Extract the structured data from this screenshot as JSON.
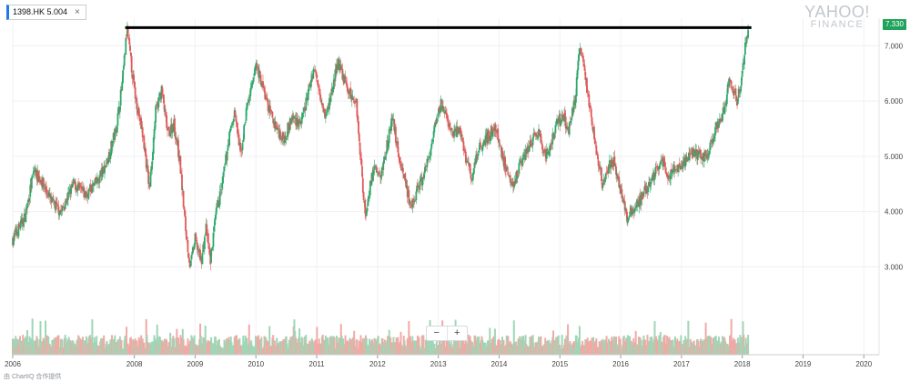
{
  "ticker": {
    "label": "1398.HK 5.004",
    "close_symbol": "×"
  },
  "brand": {
    "line1": "YAHOO!",
    "line2": "FINANCE"
  },
  "current_price": "7.330",
  "zoom": {
    "minus": "−",
    "plus": "+"
  },
  "footer": "由 ChartIQ 合作提供",
  "colors": {
    "up": "#2ea86b",
    "down": "#e05a5a",
    "vol_up": "#9fd6b6",
    "vol_down": "#f0aaa5",
    "badge": "#20a35a",
    "line": "#000000",
    "accent": "#1e7be6"
  },
  "chart_data": {
    "type": "candlestick",
    "x_tick_labels": [
      "2006",
      "2008",
      "2009",
      "2010",
      "2011",
      "2012",
      "2013",
      "2014",
      "2015",
      "2016",
      "2017",
      "2018",
      "2019",
      "2020"
    ],
    "y_tick_labels": [
      "7.000",
      "6.000",
      "5.000",
      "4.000",
      "3.000"
    ],
    "ylim": [
      2.2,
      7.5
    ],
    "xlim": [
      2006.0,
      2020.25
    ],
    "resistance_level": 7.33,
    "resistance_from": 2007.85,
    "resistance_to": 2018.15,
    "price_path": [
      [
        2006.0,
        3.5
      ],
      [
        2006.2,
        3.9
      ],
      [
        2006.35,
        4.75
      ],
      [
        2006.5,
        4.5
      ],
      [
        2006.65,
        4.15
      ],
      [
        2006.8,
        4.0
      ],
      [
        2007.0,
        4.5
      ],
      [
        2007.2,
        4.3
      ],
      [
        2007.4,
        4.55
      ],
      [
        2007.55,
        4.9
      ],
      [
        2007.7,
        5.5
      ],
      [
        2007.8,
        6.3
      ],
      [
        2007.88,
        7.3
      ],
      [
        2008.0,
        6.2
      ],
      [
        2008.15,
        5.3
      ],
      [
        2008.25,
        4.4
      ],
      [
        2008.35,
        5.8
      ],
      [
        2008.45,
        6.2
      ],
      [
        2008.55,
        5.4
      ],
      [
        2008.65,
        5.6
      ],
      [
        2008.75,
        4.9
      ],
      [
        2008.85,
        3.6
      ],
      [
        2008.92,
        3.0
      ],
      [
        2009.0,
        3.5
      ],
      [
        2009.1,
        3.1
      ],
      [
        2009.18,
        3.7
      ],
      [
        2009.25,
        3.1
      ],
      [
        2009.35,
        4.0
      ],
      [
        2009.45,
        4.5
      ],
      [
        2009.55,
        5.3
      ],
      [
        2009.65,
        5.8
      ],
      [
        2009.75,
        5.0
      ],
      [
        2009.85,
        5.9
      ],
      [
        2009.95,
        6.3
      ],
      [
        2010.0,
        6.7
      ],
      [
        2010.1,
        6.3
      ],
      [
        2010.2,
        5.9
      ],
      [
        2010.3,
        5.6
      ],
      [
        2010.45,
        5.3
      ],
      [
        2010.6,
        5.7
      ],
      [
        2010.75,
        5.6
      ],
      [
        2010.85,
        6.1
      ],
      [
        2010.95,
        6.6
      ],
      [
        2011.05,
        6.2
      ],
      [
        2011.15,
        5.7
      ],
      [
        2011.25,
        6.2
      ],
      [
        2011.35,
        6.7
      ],
      [
        2011.45,
        6.4
      ],
      [
        2011.55,
        6.1
      ],
      [
        2011.65,
        6.0
      ],
      [
        2011.72,
        5.0
      ],
      [
        2011.8,
        3.9
      ],
      [
        2011.88,
        4.5
      ],
      [
        2011.95,
        4.8
      ],
      [
        2012.05,
        4.6
      ],
      [
        2012.15,
        5.2
      ],
      [
        2012.25,
        5.7
      ],
      [
        2012.35,
        5.0
      ],
      [
        2012.45,
        4.6
      ],
      [
        2012.55,
        4.0
      ],
      [
        2012.65,
        4.4
      ],
      [
        2012.75,
        4.6
      ],
      [
        2012.85,
        5.0
      ],
      [
        2012.95,
        5.5
      ],
      [
        2013.05,
        6.0
      ],
      [
        2013.15,
        5.6
      ],
      [
        2013.25,
        5.4
      ],
      [
        2013.35,
        5.5
      ],
      [
        2013.45,
        5.0
      ],
      [
        2013.55,
        4.6
      ],
      [
        2013.65,
        5.1
      ],
      [
        2013.75,
        5.3
      ],
      [
        2013.85,
        5.4
      ],
      [
        2013.95,
        5.5
      ],
      [
        2014.05,
        5.0
      ],
      [
        2014.15,
        4.7
      ],
      [
        2014.25,
        4.5
      ],
      [
        2014.35,
        4.9
      ],
      [
        2014.45,
        5.1
      ],
      [
        2014.55,
        5.3
      ],
      [
        2014.65,
        5.4
      ],
      [
        2014.75,
        5.0
      ],
      [
        2014.85,
        5.2
      ],
      [
        2014.95,
        5.6
      ],
      [
        2015.05,
        5.7
      ],
      [
        2015.15,
        5.5
      ],
      [
        2015.25,
        6.0
      ],
      [
        2015.32,
        7.0
      ],
      [
        2015.4,
        6.6
      ],
      [
        2015.5,
        5.8
      ],
      [
        2015.6,
        5.1
      ],
      [
        2015.7,
        4.5
      ],
      [
        2015.8,
        4.8
      ],
      [
        2015.9,
        4.9
      ],
      [
        2016.0,
        4.4
      ],
      [
        2016.1,
        3.9
      ],
      [
        2016.2,
        4.0
      ],
      [
        2016.3,
        4.2
      ],
      [
        2016.4,
        4.4
      ],
      [
        2016.5,
        4.5
      ],
      [
        2016.6,
        4.8
      ],
      [
        2016.7,
        4.9
      ],
      [
        2016.8,
        4.6
      ],
      [
        2016.9,
        4.8
      ],
      [
        2017.0,
        4.8
      ],
      [
        2017.1,
        5.0
      ],
      [
        2017.2,
        5.1
      ],
      [
        2017.3,
        5.0
      ],
      [
        2017.4,
        5.0
      ],
      [
        2017.5,
        5.3
      ],
      [
        2017.6,
        5.6
      ],
      [
        2017.7,
        5.8
      ],
      [
        2017.78,
        6.4
      ],
      [
        2017.85,
        6.2
      ],
      [
        2017.92,
        6.0
      ],
      [
        2018.0,
        6.5
      ],
      [
        2018.05,
        7.0
      ],
      [
        2018.1,
        7.3
      ]
    ]
  }
}
